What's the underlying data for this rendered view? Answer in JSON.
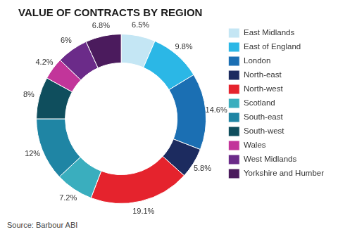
{
  "chart_data": {
    "type": "doughnut",
    "title": "VALUE OF CONTRACTS BY REGION",
    "source": "Source: Barbour ABI",
    "categories": [
      "East Midlands",
      "East of England",
      "London",
      "North-east",
      "North-west",
      "Scotland",
      "South-east",
      "South-west",
      "Wales",
      "West Midlands",
      "Yorkshire and Humber"
    ],
    "values": [
      6.5,
      9.8,
      14.6,
      5.8,
      19.1,
      7.2,
      12,
      8,
      4.2,
      6,
      6.8
    ],
    "value_labels": [
      "6.5%",
      "9.8%",
      "14.6%",
      "5.8%",
      "19.1%",
      "7.2%",
      "12%",
      "8%",
      "4.2%",
      "6%",
      "6.8%"
    ],
    "colors": [
      "#c4e6f4",
      "#2bb7e6",
      "#1b6fb3",
      "#1c2b5f",
      "#e5232d",
      "#3aaebe",
      "#1f85a4",
      "#0f4e5d",
      "#c2359a",
      "#6b2b89",
      "#4b1b5d"
    ],
    "data_labels": true,
    "legend": "right"
  }
}
